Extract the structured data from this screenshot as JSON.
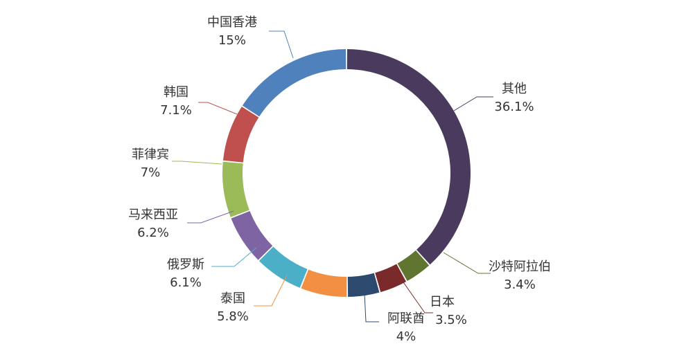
{
  "chart_data": {
    "type": "pie",
    "donut": true,
    "title": "",
    "legend": "none",
    "categories": [
      "其他",
      "沙特阿拉伯",
      "日本",
      "阿联酋",
      "泰国",
      "俄罗斯",
      "马来西亚",
      "菲律宾",
      "韩国",
      "中国香港"
    ],
    "values": [
      36.1,
      3.4,
      3.5,
      4,
      5.8,
      6.1,
      6.2,
      7,
      7.1,
      15
    ],
    "value_labels": [
      "36.1%",
      "3.4%",
      "3.5%",
      "4%",
      "5.8%",
      "6.1%",
      "6.2%",
      "7%",
      "7.1%",
      "15%"
    ],
    "colors": [
      "#4A3B5E",
      "#5F7530",
      "#7A2A2A",
      "#2D4A6E",
      "#F28F43",
      "#4BAFC8",
      "#7F64A4",
      "#9BBB59",
      "#C0504D",
      "#4F81BD",
      "#23697A"
    ]
  }
}
